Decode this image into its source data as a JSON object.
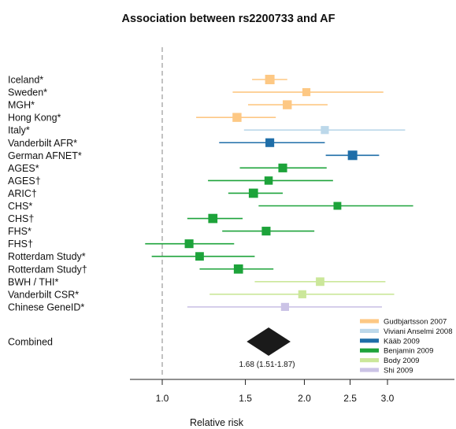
{
  "chart_data": {
    "type": "forest",
    "title": "Association between rs2200733 and AF",
    "xlabel": "Relative risk",
    "xscale": "log",
    "xlim": [
      0.86,
      3.4
    ],
    "xticks": [
      {
        "value": 1.0,
        "label": "1.0"
      },
      {
        "value": 1.5,
        "label": "1.5"
      },
      {
        "value": 2.0,
        "label": "2.0"
      },
      {
        "value": 2.5,
        "label": "2.5"
      },
      {
        "value": 3.0,
        "label": "3.0"
      }
    ],
    "reference_line": 1.0,
    "studies": [
      {
        "label": "Iceland*",
        "rr": 1.69,
        "lo": 1.55,
        "hi": 1.84,
        "source": "Gudbjartsson 2007",
        "weight": 1.0
      },
      {
        "label": "Sweden*",
        "rr": 2.02,
        "lo": 1.41,
        "hi": 2.94,
        "source": "Gudbjartsson 2007",
        "weight": 0.7
      },
      {
        "label": "MGH*",
        "rr": 1.84,
        "lo": 1.52,
        "hi": 2.24,
        "source": "Gudbjartsson 2007",
        "weight": 0.9
      },
      {
        "label": "Hong Kong*",
        "rr": 1.44,
        "lo": 1.18,
        "hi": 1.74,
        "source": "Gudbjartsson 2007",
        "weight": 0.9
      },
      {
        "label": "Italy*",
        "rr": 2.21,
        "lo": 1.49,
        "hi": 3.27,
        "source": "Viviani Anselmi 2008",
        "weight": 0.7
      },
      {
        "label": "Vanderbilt AFR*",
        "rr": 1.69,
        "lo": 1.32,
        "hi": 2.21,
        "source": "Kääb 2009",
        "weight": 0.85
      },
      {
        "label": "German AFNET*",
        "rr": 2.53,
        "lo": 2.22,
        "hi": 2.88,
        "source": "Kääb 2009",
        "weight": 1.0
      },
      {
        "label": "AGES*",
        "rr": 1.8,
        "lo": 1.46,
        "hi": 2.23,
        "source": "Benjamin 2009",
        "weight": 0.85
      },
      {
        "label": "AGES†",
        "rr": 1.68,
        "lo": 1.25,
        "hi": 2.3,
        "source": "Benjamin 2009",
        "weight": 0.75
      },
      {
        "label": "ARIC†",
        "rr": 1.56,
        "lo": 1.38,
        "hi": 1.8,
        "source": "Benjamin 2009",
        "weight": 0.95
      },
      {
        "label": "CHS*",
        "rr": 2.35,
        "lo": 1.6,
        "hi": 3.4,
        "source": "Benjamin 2009",
        "weight": 0.65
      },
      {
        "label": "CHS†",
        "rr": 1.28,
        "lo": 1.13,
        "hi": 1.48,
        "source": "Benjamin 2009",
        "weight": 0.95
      },
      {
        "label": "FHS*",
        "rr": 1.66,
        "lo": 1.34,
        "hi": 2.1,
        "source": "Benjamin 2009",
        "weight": 0.85
      },
      {
        "label": "FHS†",
        "rr": 1.14,
        "lo": 0.92,
        "hi": 1.42,
        "source": "Benjamin 2009",
        "weight": 0.85
      },
      {
        "label": "Rotterdam Study*",
        "rr": 1.2,
        "lo": 0.95,
        "hi": 1.57,
        "source": "Benjamin 2009",
        "weight": 0.8
      },
      {
        "label": "Rotterdam Study†",
        "rr": 1.45,
        "lo": 1.2,
        "hi": 1.72,
        "source": "Benjamin 2009",
        "weight": 0.95
      },
      {
        "label": "BWH / THI*",
        "rr": 2.16,
        "lo": 1.57,
        "hi": 2.97,
        "source": "Body 2009",
        "weight": 0.8
      },
      {
        "label": "Vanderbilt CSR*",
        "rr": 1.98,
        "lo": 1.26,
        "hi": 3.1,
        "source": "Body 2009",
        "weight": 0.7
      },
      {
        "label": "Chinese GeneID*",
        "rr": 1.82,
        "lo": 1.13,
        "hi": 2.92,
        "source": "Shi 2009",
        "weight": 0.7
      }
    ],
    "combined": {
      "label": "Combined",
      "rr": 1.68,
      "lo": 1.51,
      "hi": 1.87,
      "text": "1.68 (1.51-1.87)"
    },
    "legend": {
      "position": "bottom-right",
      "entries": [
        {
          "name": "Gudbjartsson 2007",
          "color": "#fdc884"
        },
        {
          "name": "Viviani Anselmi 2008",
          "color": "#bcd8ea"
        },
        {
          "name": "Kääb 2009",
          "color": "#1f6ea8"
        },
        {
          "name": "Benjamin 2009",
          "color": "#1da33a"
        },
        {
          "name": "Body 2009",
          "color": "#cbe79a"
        },
        {
          "name": "Shi 2009",
          "color": "#cbc3e6"
        }
      ]
    },
    "grid": false
  }
}
